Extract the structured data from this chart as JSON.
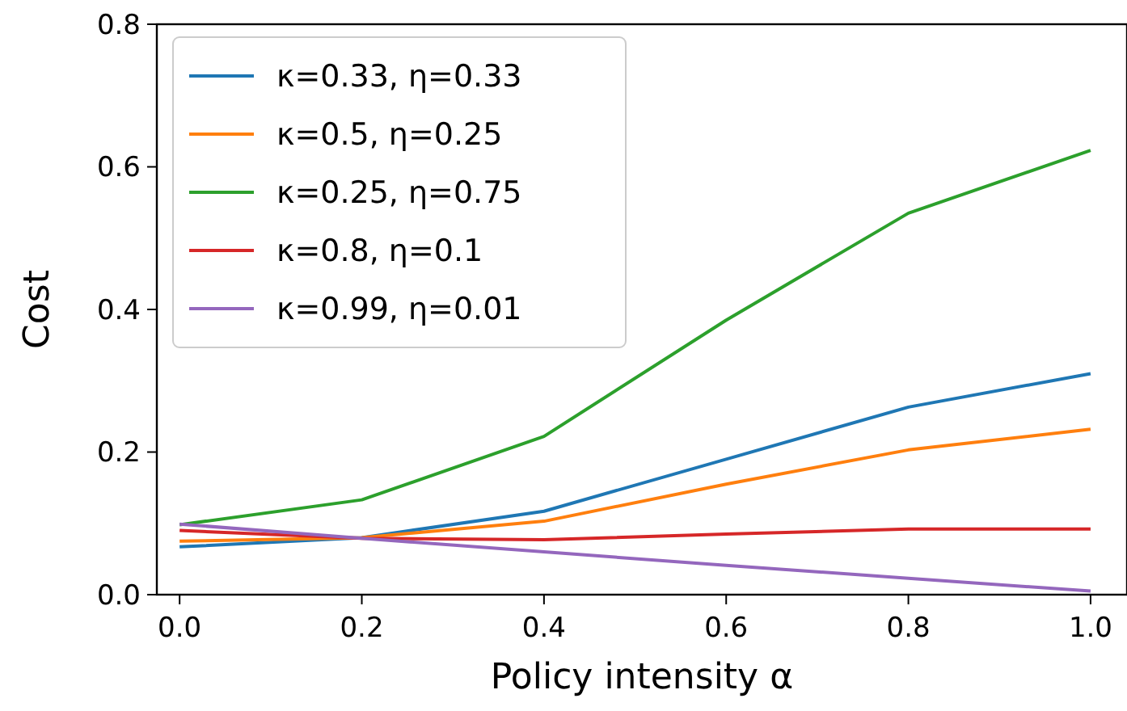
{
  "chart_data": {
    "type": "line",
    "xlabel": "Policy intensity α",
    "ylabel": "Cost",
    "x": [
      0,
      0.2,
      0.4,
      0.6,
      0.8,
      1.0
    ],
    "series": [
      {
        "name": "κ=0.33, η=0.33",
        "color": "#1f77b4",
        "values": [
          0.067,
          0.08,
          0.117,
          0.19,
          0.263,
          0.31
        ]
      },
      {
        "name": "κ=0.5, η=0.25",
        "color": "#ff7f0e",
        "values": [
          0.075,
          0.08,
          0.103,
          0.155,
          0.203,
          0.232
        ]
      },
      {
        "name": "κ=0.25, η=0.75",
        "color": "#2ca02c",
        "values": [
          0.098,
          0.133,
          0.222,
          0.385,
          0.535,
          0.623
        ]
      },
      {
        "name": "κ=0.8, η=0.1",
        "color": "#d62728",
        "values": [
          0.09,
          0.079,
          0.077,
          0.085,
          0.092,
          0.092
        ]
      },
      {
        "name": "κ=0.99, η=0.01",
        "color": "#9467bd",
        "values": [
          0.099,
          0.079,
          0.06,
          0.041,
          0.023,
          0.005
        ]
      }
    ],
    "xlim": [
      -0.025,
      1.04
    ],
    "ylim": [
      0,
      0.8
    ],
    "xticks": [
      {
        "value": 0,
        "label": "0.0"
      },
      {
        "value": 0.2,
        "label": "0.2"
      },
      {
        "value": 0.4,
        "label": "0.4"
      },
      {
        "value": 0.6,
        "label": "0.6"
      },
      {
        "value": 0.8,
        "label": "0.8"
      },
      {
        "value": 1.0,
        "label": "1.0"
      }
    ],
    "yticks": [
      {
        "value": 0,
        "label": "0.0"
      },
      {
        "value": 0.2,
        "label": "0.2"
      },
      {
        "value": 0.4,
        "label": "0.4"
      },
      {
        "value": 0.6,
        "label": "0.6"
      },
      {
        "value": 0.8,
        "label": "0.8"
      }
    ],
    "legend": "top left",
    "grid": false,
    "marker": "none",
    "line_style": "solid"
  }
}
